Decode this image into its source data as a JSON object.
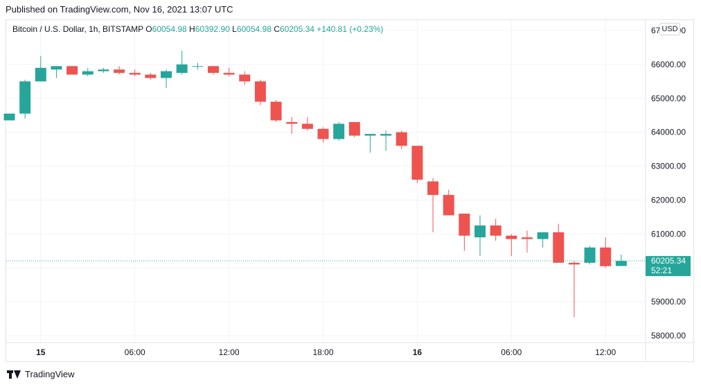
{
  "header": {
    "published": "Published on TradingView.com, Nov 16, 2021 13:07 UTC"
  },
  "legend": {
    "symbol": "Bitcoin / U.S. Dollar, 1h, BITSTAMP",
    "o_label": "O",
    "o_value": "60054.98",
    "h_label": "H",
    "h_value": "60392.90",
    "l_label": "L",
    "l_value": "60054.98",
    "c_label": "C",
    "c_value": "60205.34",
    "change": "+140.81 (+0.23%)"
  },
  "currency_button": "USD",
  "footer": {
    "brand": "TradingView"
  },
  "colors": {
    "up": "#26a69a",
    "down": "#ef5350",
    "grid": "#f0f3fa"
  },
  "chart_data": {
    "type": "candlestick",
    "ylim": [
      57900,
      67000
    ],
    "y_ticks": [
      "58000.00",
      "59000.00",
      "60000.00",
      "61000.00",
      "62000.00",
      "63000.00",
      "64000.00",
      "65000.00",
      "66000.00",
      "67000.00"
    ],
    "y_tick_values": [
      58000,
      59000,
      60000,
      61000,
      62000,
      63000,
      64000,
      65000,
      66000,
      67000
    ],
    "x_ticks": [
      {
        "label": "15",
        "bar": 2
      },
      {
        "label": "06:00",
        "bar": 8
      },
      {
        "label": "12:00",
        "bar": 14
      },
      {
        "label": "18:00",
        "bar": 20
      },
      {
        "label": "16",
        "bar": 26
      },
      {
        "label": "06:00",
        "bar": 32
      },
      {
        "label": "12:00",
        "bar": 38
      }
    ],
    "last_price": {
      "value": 60205.34,
      "label": "60205.34",
      "countdown": "52:21"
    },
    "candles": [
      {
        "o": 64350,
        "h": 64500,
        "l": 64350,
        "c": 64550
      },
      {
        "o": 64550,
        "h": 65550,
        "l": 64400,
        "c": 65500
      },
      {
        "o": 65500,
        "h": 66250,
        "l": 65500,
        "c": 65900
      },
      {
        "o": 65850,
        "h": 65950,
        "l": 65600,
        "c": 65950
      },
      {
        "o": 65950,
        "h": 65950,
        "l": 65700,
        "c": 65700
      },
      {
        "o": 65700,
        "h": 65900,
        "l": 65650,
        "c": 65800
      },
      {
        "o": 65800,
        "h": 65900,
        "l": 65750,
        "c": 65850
      },
      {
        "o": 65850,
        "h": 65950,
        "l": 65700,
        "c": 65750
      },
      {
        "o": 65750,
        "h": 65850,
        "l": 65650,
        "c": 65700
      },
      {
        "o": 65700,
        "h": 65750,
        "l": 65550,
        "c": 65600
      },
      {
        "o": 65600,
        "h": 65850,
        "l": 65300,
        "c": 65800
      },
      {
        "o": 65750,
        "h": 66400,
        "l": 65700,
        "c": 66000
      },
      {
        "o": 65950,
        "h": 66050,
        "l": 65850,
        "c": 65950
      },
      {
        "o": 65950,
        "h": 65950,
        "l": 65700,
        "c": 65750
      },
      {
        "o": 65750,
        "h": 65900,
        "l": 65650,
        "c": 65700
      },
      {
        "o": 65700,
        "h": 65800,
        "l": 65400,
        "c": 65500
      },
      {
        "o": 65500,
        "h": 65550,
        "l": 64800,
        "c": 64900
      },
      {
        "o": 64900,
        "h": 64950,
        "l": 64300,
        "c": 64350
      },
      {
        "o": 64300,
        "h": 64450,
        "l": 63950,
        "c": 64250
      },
      {
        "o": 64250,
        "h": 64450,
        "l": 64050,
        "c": 64100
      },
      {
        "o": 64100,
        "h": 64150,
        "l": 63700,
        "c": 63800
      },
      {
        "o": 63800,
        "h": 64300,
        "l": 63750,
        "c": 64250
      },
      {
        "o": 64300,
        "h": 64300,
        "l": 63850,
        "c": 63900
      },
      {
        "o": 63900,
        "h": 63950,
        "l": 63400,
        "c": 63950
      },
      {
        "o": 63900,
        "h": 64050,
        "l": 63450,
        "c": 63950
      },
      {
        "o": 64000,
        "h": 64050,
        "l": 63500,
        "c": 63600
      },
      {
        "o": 63600,
        "h": 63600,
        "l": 62500,
        "c": 62600
      },
      {
        "o": 62550,
        "h": 62650,
        "l": 61050,
        "c": 62150
      },
      {
        "o": 62150,
        "h": 62300,
        "l": 61550,
        "c": 61550
      },
      {
        "o": 61600,
        "h": 61600,
        "l": 60500,
        "c": 60950
      },
      {
        "o": 60900,
        "h": 61550,
        "l": 60350,
        "c": 61250
      },
      {
        "o": 61250,
        "h": 61450,
        "l": 60800,
        "c": 60950
      },
      {
        "o": 60950,
        "h": 61000,
        "l": 60350,
        "c": 60850
      },
      {
        "o": 60900,
        "h": 61100,
        "l": 60450,
        "c": 60850
      },
      {
        "o": 60850,
        "h": 61000,
        "l": 60600,
        "c": 61050
      },
      {
        "o": 61050,
        "h": 61300,
        "l": 60150,
        "c": 60150
      },
      {
        "o": 60150,
        "h": 60200,
        "l": 58550,
        "c": 60100
      },
      {
        "o": 60150,
        "h": 60650,
        "l": 60100,
        "c": 60600
      },
      {
        "o": 60600,
        "h": 60900,
        "l": 60000,
        "c": 60050
      },
      {
        "o": 60054.98,
        "h": 60392.9,
        "l": 60054.98,
        "c": 60205.34
      }
    ]
  }
}
